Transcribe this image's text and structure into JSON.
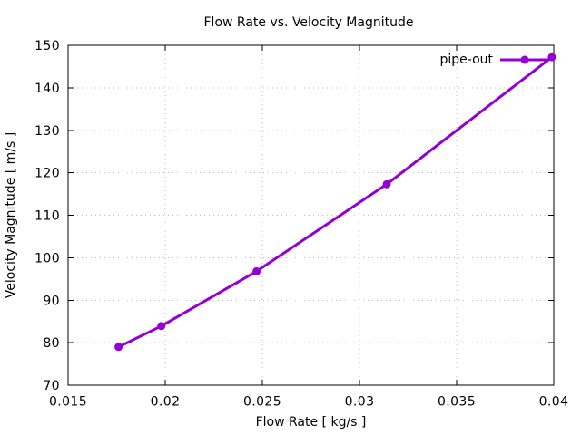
{
  "chart_data": {
    "type": "line",
    "title": "Flow Rate vs. Velocity Magnitude",
    "xlabel": "Flow Rate [ kg/s ]",
    "ylabel": "Velocity Magnitude [ m/s ]",
    "xlim": [
      0.015,
      0.04
    ],
    "ylim": [
      70,
      150
    ],
    "xticks": [
      0.015,
      0.02,
      0.025,
      0.03,
      0.035,
      0.04
    ],
    "xtick_labels": [
      "0.015",
      "0.02",
      "0.025",
      "0.03",
      "0.035",
      "0.04"
    ],
    "yticks": [
      70,
      80,
      90,
      100,
      110,
      120,
      130,
      140,
      150
    ],
    "ytick_labels": [
      "70",
      "80",
      "90",
      "100",
      "110",
      "120",
      "130",
      "140",
      "150"
    ],
    "grid": true,
    "legend_position": "top-right",
    "colors": {
      "background": "#ffffff",
      "axis": "#000000",
      "grid": "#bbbbbb",
      "text": "#000000"
    },
    "series": [
      {
        "name": "pipe-out",
        "color": "#9400d3",
        "marker": "filled-circle",
        "line_width": 3,
        "marker_radius": 4.5,
        "points": [
          [
            0.0176,
            79.0
          ],
          [
            0.0198,
            83.9
          ],
          [
            0.0247,
            96.8
          ],
          [
            0.0314,
            117.3
          ],
          [
            0.0399,
            147.2
          ]
        ]
      }
    ]
  }
}
